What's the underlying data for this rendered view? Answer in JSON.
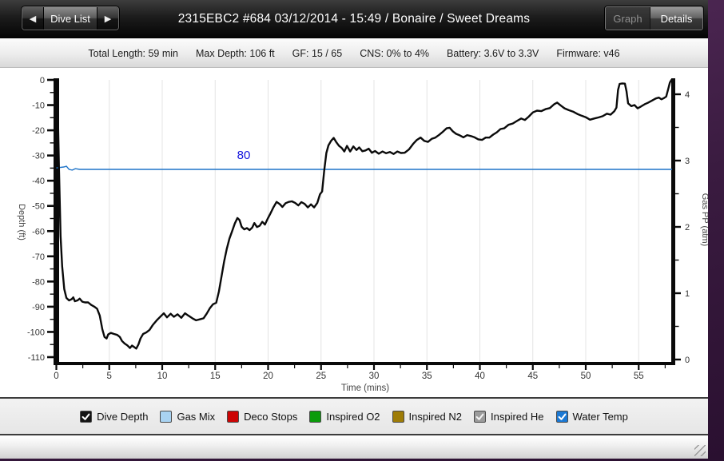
{
  "titlebar": {
    "prev_icon": "◀",
    "next_icon": "▶",
    "dive_list_label": "Dive List",
    "title": "2315EBC2 #684 03/12/2014 - 15:49  / Bonaire / Sweet Dreams",
    "graph_label": "Graph",
    "details_label": "Details"
  },
  "infobar": {
    "items": [
      "Total Length: 59 min",
      "Max Depth: 106 ft",
      "GF: 15 / 65",
      "CNS: 0% to 4%",
      "Battery: 3.6V to 3.3V",
      "Firmware: v46"
    ]
  },
  "legend": {
    "position": "bottom",
    "items": [
      {
        "label": "Dive Depth",
        "color": "#141414",
        "checked": true,
        "check_color": "#ffffff"
      },
      {
        "label": "Gas Mix",
        "color": "#a9d3f2",
        "checked": false,
        "check_color": "#ffffff"
      },
      {
        "label": "Deco Stops",
        "color": "#cc0505",
        "checked": false,
        "check_color": "#ffffff"
      },
      {
        "label": "Inspired O2",
        "color": "#0a9b0a",
        "checked": false,
        "check_color": "#ffffff"
      },
      {
        "label": "Inspired N2",
        "color": "#9e7c07",
        "checked": false,
        "check_color": "#ffffff"
      },
      {
        "label": "Inspired He",
        "color": "#9b9b9b",
        "checked": true,
        "check_color": "#f2f2f2"
      },
      {
        "label": "Water Temp",
        "color": "#1b79d4",
        "checked": true,
        "check_color": "#ffffff"
      }
    ]
  },
  "chart_data": {
    "type": "line",
    "xlabel": "Time (mins)",
    "ylabel_left": "Depth (ft)",
    "ylabel_right": "Gas PP (atm)",
    "xlim": [
      0,
      58.4
    ],
    "depth_lim": [
      0,
      -112.5
    ],
    "gas_lim": [
      0,
      4.25
    ],
    "time_ticks": [
      0,
      5,
      10,
      15,
      20,
      25,
      30,
      35,
      40,
      45,
      50,
      55
    ],
    "time_minor_step": 2.5,
    "depth_ticks": [
      0,
      -10,
      -20,
      -30,
      -40,
      -50,
      -60,
      -70,
      -80,
      -90,
      -100,
      -110
    ],
    "depth_minor_step": 5,
    "gas_ticks": [
      0,
      1,
      2,
      3,
      4
    ],
    "gas_minor_step": 0.5,
    "grid": "vertical-major-only",
    "grid_color": "#e4e4e4",
    "series": [
      {
        "name": "Dive Depth",
        "unit": "ft",
        "color": "#0a0a0a",
        "points": [
          [
            0,
            0
          ],
          [
            0.12,
            -8
          ],
          [
            0.25,
            -35
          ],
          [
            0.4,
            -62
          ],
          [
            0.55,
            -74
          ],
          [
            0.75,
            -83
          ],
          [
            0.95,
            -86.5
          ],
          [
            1.2,
            -87.5
          ],
          [
            1.45,
            -87
          ],
          [
            1.6,
            -86.3
          ],
          [
            1.75,
            -87.8
          ],
          [
            2.0,
            -87.5
          ],
          [
            2.2,
            -86.8
          ],
          [
            2.45,
            -88
          ],
          [
            2.7,
            -88.3
          ],
          [
            3.0,
            -88.3
          ],
          [
            3.3,
            -89.3
          ],
          [
            3.6,
            -90
          ],
          [
            3.85,
            -90.8
          ],
          [
            4.1,
            -93.5
          ],
          [
            4.35,
            -99
          ],
          [
            4.55,
            -102
          ],
          [
            4.75,
            -102.6
          ],
          [
            4.9,
            -101
          ],
          [
            5.15,
            -100.4
          ],
          [
            5.45,
            -100.8
          ],
          [
            5.75,
            -101.2
          ],
          [
            6.0,
            -102
          ],
          [
            6.2,
            -103.6
          ],
          [
            6.45,
            -104.6
          ],
          [
            6.7,
            -105.3
          ],
          [
            6.95,
            -106.4
          ],
          [
            7.15,
            -105.4
          ],
          [
            7.35,
            -106
          ],
          [
            7.55,
            -106.6
          ],
          [
            7.75,
            -105
          ],
          [
            7.95,
            -102.6
          ],
          [
            8.2,
            -100.8
          ],
          [
            8.5,
            -100.2
          ],
          [
            8.8,
            -99.2
          ],
          [
            9.1,
            -97.3
          ],
          [
            9.5,
            -95.3
          ],
          [
            9.9,
            -93.6
          ],
          [
            10.15,
            -92.6
          ],
          [
            10.45,
            -94.2
          ],
          [
            10.8,
            -92.8
          ],
          [
            11.1,
            -94
          ],
          [
            11.45,
            -93
          ],
          [
            11.8,
            -94.4
          ],
          [
            12.15,
            -92.6
          ],
          [
            12.5,
            -93.6
          ],
          [
            12.85,
            -94.6
          ],
          [
            13.2,
            -95.4
          ],
          [
            13.55,
            -95
          ],
          [
            13.9,
            -94.6
          ],
          [
            14.2,
            -92.8
          ],
          [
            14.5,
            -90.6
          ],
          [
            14.8,
            -89
          ],
          [
            15.1,
            -88.4
          ],
          [
            15.35,
            -84
          ],
          [
            15.6,
            -78
          ],
          [
            15.85,
            -72
          ],
          [
            16.1,
            -67
          ],
          [
            16.35,
            -63
          ],
          [
            16.6,
            -60
          ],
          [
            16.85,
            -57
          ],
          [
            17.1,
            -54.8
          ],
          [
            17.3,
            -55.6
          ],
          [
            17.5,
            -58.3
          ],
          [
            17.75,
            -59.3
          ],
          [
            18.0,
            -58.8
          ],
          [
            18.25,
            -59.6
          ],
          [
            18.5,
            -58.6
          ],
          [
            18.7,
            -56.8
          ],
          [
            18.95,
            -58.4
          ],
          [
            19.2,
            -57.9
          ],
          [
            19.45,
            -56.3
          ],
          [
            19.7,
            -57.4
          ],
          [
            19.95,
            -55.2
          ],
          [
            20.2,
            -53.2
          ],
          [
            20.5,
            -50.6
          ],
          [
            20.8,
            -48.4
          ],
          [
            21.1,
            -49.3
          ],
          [
            21.35,
            -50.4
          ],
          [
            21.65,
            -48.9
          ],
          [
            21.95,
            -48.4
          ],
          [
            22.25,
            -48.2
          ],
          [
            22.55,
            -48.8
          ],
          [
            22.85,
            -49.8
          ],
          [
            23.15,
            -48.5
          ],
          [
            23.45,
            -49.2
          ],
          [
            23.75,
            -50.6
          ],
          [
            24.05,
            -49.4
          ],
          [
            24.35,
            -50.6
          ],
          [
            24.65,
            -48.8
          ],
          [
            24.9,
            -45.4
          ],
          [
            25.1,
            -44.3
          ],
          [
            25.3,
            -36
          ],
          [
            25.5,
            -29
          ],
          [
            25.7,
            -26
          ],
          [
            25.95,
            -24.2
          ],
          [
            26.2,
            -23
          ],
          [
            26.45,
            -24.8
          ],
          [
            26.7,
            -26.2
          ],
          [
            26.95,
            -27
          ],
          [
            27.2,
            -28.4
          ],
          [
            27.45,
            -26.2
          ],
          [
            27.75,
            -28.4
          ],
          [
            28.05,
            -26.4
          ],
          [
            28.35,
            -27.8
          ],
          [
            28.6,
            -26.8
          ],
          [
            28.9,
            -28.3
          ],
          [
            29.2,
            -28
          ],
          [
            29.5,
            -27.3
          ],
          [
            29.8,
            -28.9
          ],
          [
            30.1,
            -28.2
          ],
          [
            30.45,
            -29.3
          ],
          [
            30.8,
            -28.4
          ],
          [
            31.15,
            -29.1
          ],
          [
            31.5,
            -28.6
          ],
          [
            31.85,
            -29.4
          ],
          [
            32.2,
            -28.4
          ],
          [
            32.55,
            -29
          ],
          [
            32.9,
            -28.9
          ],
          [
            33.3,
            -27.6
          ],
          [
            33.7,
            -25.4
          ],
          [
            34.05,
            -23.8
          ],
          [
            34.4,
            -22.9
          ],
          [
            34.75,
            -24.2
          ],
          [
            35.1,
            -24.6
          ],
          [
            35.45,
            -23.4
          ],
          [
            35.8,
            -22.9
          ],
          [
            36.15,
            -21.8
          ],
          [
            36.5,
            -20.6
          ],
          [
            36.85,
            -19.2
          ],
          [
            37.15,
            -19
          ],
          [
            37.45,
            -20.4
          ],
          [
            37.75,
            -21.4
          ],
          [
            38.1,
            -22
          ],
          [
            38.45,
            -22.8
          ],
          [
            38.8,
            -21.9
          ],
          [
            39.15,
            -22.3
          ],
          [
            39.5,
            -22.8
          ],
          [
            39.85,
            -23.6
          ],
          [
            40.2,
            -23.8
          ],
          [
            40.55,
            -22.9
          ],
          [
            40.9,
            -22.9
          ],
          [
            41.25,
            -21.7
          ],
          [
            41.6,
            -20.8
          ],
          [
            41.95,
            -19.5
          ],
          [
            42.3,
            -19.2
          ],
          [
            42.7,
            -17.8
          ],
          [
            43.1,
            -17.3
          ],
          [
            43.5,
            -16.3
          ],
          [
            43.9,
            -15.3
          ],
          [
            44.25,
            -15.9
          ],
          [
            44.6,
            -14.6
          ],
          [
            45.0,
            -12.9
          ],
          [
            45.4,
            -12.2
          ],
          [
            45.8,
            -12.4
          ],
          [
            46.2,
            -11.6
          ],
          [
            46.6,
            -11.2
          ],
          [
            47.0,
            -9.7
          ],
          [
            47.3,
            -9
          ],
          [
            47.65,
            -10.2
          ],
          [
            48.0,
            -11.3
          ],
          [
            48.4,
            -12
          ],
          [
            48.8,
            -12.6
          ],
          [
            49.2,
            -13.5
          ],
          [
            49.6,
            -14.2
          ],
          [
            50.0,
            -14.8
          ],
          [
            50.4,
            -15.8
          ],
          [
            50.8,
            -15.3
          ],
          [
            51.2,
            -14.9
          ],
          [
            51.6,
            -14.4
          ],
          [
            52.0,
            -13.4
          ],
          [
            52.35,
            -13.8
          ],
          [
            52.7,
            -12.4
          ],
          [
            52.9,
            -11
          ],
          [
            53.05,
            -4
          ],
          [
            53.2,
            -1.6
          ],
          [
            53.45,
            -1.4
          ],
          [
            53.7,
            -1.5
          ],
          [
            53.85,
            -4.5
          ],
          [
            54.0,
            -9.3
          ],
          [
            54.3,
            -10.4
          ],
          [
            54.6,
            -10
          ],
          [
            54.9,
            -11.3
          ],
          [
            55.2,
            -10.6
          ],
          [
            55.55,
            -9.7
          ],
          [
            55.9,
            -9
          ],
          [
            56.25,
            -8.2
          ],
          [
            56.6,
            -7.4
          ],
          [
            56.9,
            -7
          ],
          [
            57.15,
            -7.7
          ],
          [
            57.4,
            -7.2
          ],
          [
            57.6,
            -6.6
          ],
          [
            57.8,
            -3.5
          ],
          [
            57.95,
            -1
          ],
          [
            58.1,
            0
          ]
        ]
      },
      {
        "name": "Water Temp",
        "unit": "°F",
        "color": "#1f74c8",
        "label": "80",
        "label_color": "#1414dd",
        "label_t": 17.7,
        "points": [
          [
            0,
            80.3
          ],
          [
            0.7,
            80.5
          ],
          [
            0.95,
            80.65
          ],
          [
            1.2,
            80.0
          ],
          [
            1.5,
            79.85
          ],
          [
            1.8,
            80.15
          ],
          [
            2.2,
            80
          ],
          [
            58.15,
            80
          ]
        ]
      }
    ]
  },
  "statusbar": {}
}
